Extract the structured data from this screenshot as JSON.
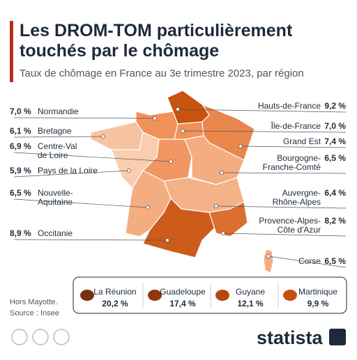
{
  "header": {
    "title_lines": [
      "Les DROM-TOM particulièrement",
      "touchés par le chômage"
    ],
    "subtitle": "Taux de chômage en France au 3e trimestre 2023, par région"
  },
  "regions": [
    {
      "name_lines": [
        "Normandie"
      ],
      "value": 7.0,
      "value_label": "7,0 %"
    },
    {
      "name_lines": [
        "Bretagne"
      ],
      "value": 6.1,
      "value_label": "6,1 %"
    },
    {
      "name_lines": [
        "Centre-Val",
        "de Loire"
      ],
      "value": 6.9,
      "value_label": "6,9 %"
    },
    {
      "name_lines": [
        "Pays de la Loire"
      ],
      "value": 5.9,
      "value_label": "5,9 %"
    },
    {
      "name_lines": [
        "Nouvelle-",
        "Aquitaine"
      ],
      "value": 6.5,
      "value_label": "6,5 %"
    },
    {
      "name_lines": [
        "Occitanie"
      ],
      "value": 8.9,
      "value_label": "8,9 %"
    },
    {
      "name_lines": [
        "Hauts-de-France"
      ],
      "value": 9.2,
      "value_label": "9,2 %"
    },
    {
      "name_lines": [
        "Île-de-France"
      ],
      "value": 7.0,
      "value_label": "7,0 %"
    },
    {
      "name_lines": [
        "Grand Est"
      ],
      "value": 7.4,
      "value_label": "7,4 %"
    },
    {
      "name_lines": [
        "Bourgogne-",
        "Franche-Comté"
      ],
      "value": 6.5,
      "value_label": "6,5 %"
    },
    {
      "name_lines": [
        "Auvergne-",
        "Rhône-Alpes"
      ],
      "value": 6.4,
      "value_label": "6,4 %"
    },
    {
      "name_lines": [
        "Provence-Alpes-",
        "Côte d'Azur"
      ],
      "value": 8.2,
      "value_label": "8,2 %"
    },
    {
      "name_lines": [
        "Corse"
      ],
      "value": 6.5,
      "value_label": "6,5 %"
    }
  ],
  "overseas": [
    {
      "name": "La Réunion",
      "value": 20.2,
      "value_label": "20,2 %"
    },
    {
      "name": "Guadeloupe",
      "value": 17.4,
      "value_label": "17,4 %"
    },
    {
      "name": "Guyane",
      "value": 12.1,
      "value_label": "12,1 %"
    },
    {
      "name": "Martinique",
      "value": 9.9,
      "value_label": "9,9 %"
    }
  ],
  "footer": {
    "note": "Hors Mayotte.",
    "source": "Source : Insee",
    "brand": "statista"
  }
}
